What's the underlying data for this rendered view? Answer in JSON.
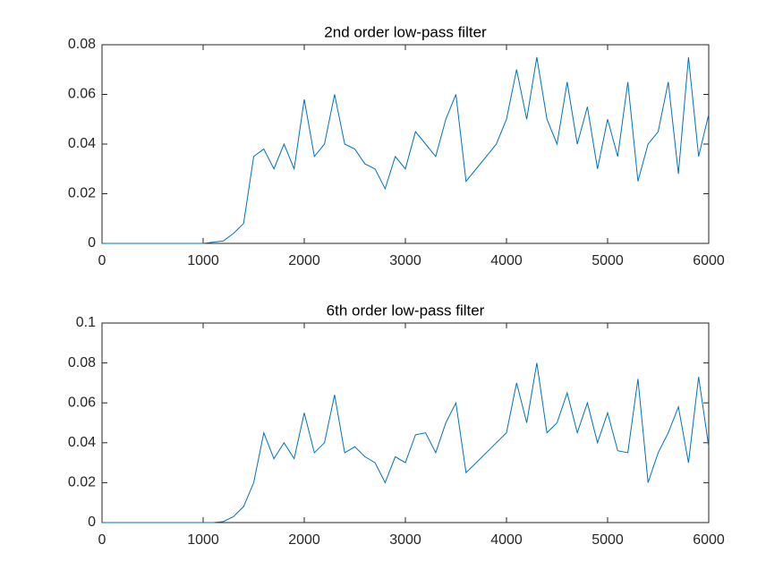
{
  "chart_data": [
    {
      "type": "line",
      "title": "2nd order low-pass filter",
      "color": "#0072bd",
      "xlim": [
        0,
        6000
      ],
      "xticks": [
        0,
        1000,
        2000,
        3000,
        4000,
        5000,
        6000
      ],
      "ylim": [
        0,
        0.08
      ],
      "yticks": [
        0,
        0.02,
        0.04,
        0.06,
        0.08
      ],
      "x": [
        0,
        100,
        200,
        300,
        400,
        500,
        600,
        700,
        800,
        900,
        1000,
        1100,
        1200,
        1300,
        1400,
        1500,
        1600,
        1700,
        1800,
        1900,
        2000,
        2100,
        2200,
        2300,
        2400,
        2500,
        2600,
        2700,
        2800,
        2900,
        3000,
        3100,
        3200,
        3300,
        3400,
        3500,
        3600,
        3700,
        3800,
        3900,
        4000,
        4100,
        4200,
        4300,
        4400,
        4500,
        4600,
        4700,
        4800,
        4900,
        5000,
        5100,
        5200,
        5300,
        5400,
        5500,
        5600,
        5700,
        5800,
        5900,
        6000
      ],
      "values": [
        0,
        0,
        0,
        0,
        0,
        0,
        0,
        0,
        0,
        0,
        0,
        0.0005,
        0.001,
        0.004,
        0.008,
        0.035,
        0.038,
        0.03,
        0.04,
        0.03,
        0.058,
        0.035,
        0.04,
        0.06,
        0.04,
        0.038,
        0.032,
        0.03,
        0.022,
        0.035,
        0.03,
        0.045,
        0.04,
        0.035,
        0.05,
        0.06,
        0.025,
        0.03,
        0.035,
        0.04,
        0.05,
        0.07,
        0.05,
        0.075,
        0.05,
        0.04,
        0.065,
        0.04,
        0.055,
        0.03,
        0.05,
        0.035,
        0.065,
        0.025,
        0.04,
        0.045,
        0.065,
        0.028,
        0.075,
        0.035,
        0.052
      ]
    },
    {
      "type": "line",
      "title": "6th order low-pass filter",
      "color": "#0072bd",
      "xlim": [
        0,
        6000
      ],
      "xticks": [
        0,
        1000,
        2000,
        3000,
        4000,
        5000,
        6000
      ],
      "ylim": [
        0,
        0.1
      ],
      "yticks": [
        0,
        0.02,
        0.04,
        0.06,
        0.08,
        0.1
      ],
      "x": [
        0,
        100,
        200,
        300,
        400,
        500,
        600,
        700,
        800,
        900,
        1000,
        1100,
        1200,
        1300,
        1400,
        1500,
        1600,
        1700,
        1800,
        1900,
        2000,
        2100,
        2200,
        2300,
        2400,
        2500,
        2600,
        2700,
        2800,
        2900,
        3000,
        3100,
        3200,
        3300,
        3400,
        3500,
        3600,
        3700,
        3800,
        3900,
        4000,
        4100,
        4200,
        4300,
        4400,
        4500,
        4600,
        4700,
        4800,
        4900,
        5000,
        5100,
        5200,
        5300,
        5400,
        5500,
        5600,
        5700,
        5800,
        5900,
        6000
      ],
      "values": [
        0,
        0,
        0,
        0,
        0,
        0,
        0,
        0,
        0,
        0,
        0,
        0,
        0.0005,
        0.003,
        0.008,
        0.02,
        0.045,
        0.032,
        0.04,
        0.032,
        0.055,
        0.035,
        0.04,
        0.064,
        0.035,
        0.038,
        0.033,
        0.03,
        0.02,
        0.033,
        0.03,
        0.044,
        0.045,
        0.035,
        0.05,
        0.06,
        0.025,
        0.03,
        0.035,
        0.04,
        0.045,
        0.07,
        0.05,
        0.08,
        0.045,
        0.05,
        0.065,
        0.045,
        0.06,
        0.04,
        0.055,
        0.036,
        0.035,
        0.072,
        0.02,
        0.035,
        0.045,
        0.058,
        0.03,
        0.073,
        0.038
      ]
    }
  ]
}
